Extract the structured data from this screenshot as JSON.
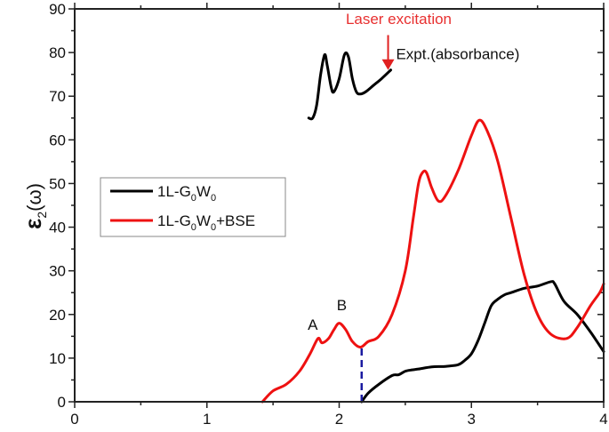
{
  "chart_data": {
    "type": "line",
    "title": "",
    "xlabel": "",
    "ylabel": "ε2(ω)",
    "ylabel_main": "ε",
    "ylabel_sub": "2",
    "ylabel_arg": "(ω)",
    "xlim": [
      0,
      4
    ],
    "ylim": [
      0,
      90
    ],
    "xticks": [
      0,
      1,
      2,
      3,
      4
    ],
    "yticks": [
      0,
      10,
      20,
      30,
      40,
      50,
      60,
      70,
      80,
      90
    ],
    "grid": false,
    "legend_position": "center-left",
    "legend": [
      {
        "main": "1L-G",
        "sub1": "0",
        "mid": "W",
        "sub2": "0",
        "tail": ""
      },
      {
        "main": "1L-G",
        "sub1": "0",
        "mid": "W",
        "sub2": "0",
        "tail": "+BSE"
      }
    ],
    "series": [
      {
        "name": "1L-G0W0",
        "color": "#000000",
        "x": [
          2.17,
          2.22,
          2.3,
          2.4,
          2.45,
          2.5,
          2.55,
          2.6,
          2.7,
          2.8,
          2.9,
          2.95,
          3.0,
          3.05,
          3.1,
          3.15,
          3.2,
          3.25,
          3.3,
          3.4,
          3.5,
          3.6,
          3.63,
          3.7,
          3.8,
          3.9,
          4.0
        ],
        "y": [
          0,
          2,
          4,
          6,
          6.2,
          7,
          7.3,
          7.5,
          8,
          8.1,
          8.5,
          9.5,
          11,
          14,
          18,
          22,
          23.5,
          24.5,
          25,
          26,
          26.5,
          27.5,
          27,
          23,
          20,
          16,
          11.5
        ]
      },
      {
        "name": "1L-G0W0+BSE",
        "color": "#ee1111",
        "x": [
          1.42,
          1.5,
          1.6,
          1.7,
          1.78,
          1.84,
          1.87,
          1.92,
          1.96,
          2.0,
          2.05,
          2.1,
          2.16,
          2.22,
          2.3,
          2.4,
          2.5,
          2.56,
          2.6,
          2.63,
          2.66,
          2.7,
          2.75,
          2.8,
          2.9,
          3.0,
          3.06,
          3.12,
          3.2,
          3.3,
          3.4,
          3.5,
          3.6,
          3.72,
          3.8,
          3.9,
          3.97,
          4.0
        ],
        "y": [
          0,
          2.5,
          4,
          7,
          11,
          14.5,
          13.5,
          14.5,
          16.5,
          18,
          16.5,
          13.8,
          12.5,
          13.8,
          15,
          20,
          30,
          42,
          50,
          52.5,
          52.5,
          49,
          46,
          47,
          53,
          61,
          64.5,
          62,
          55,
          42,
          29,
          20,
          15.5,
          14.5,
          17,
          22,
          25,
          27
        ]
      },
      {
        "name": "Expt.(absorbance)",
        "color": "#000000",
        "x": [
          1.77,
          1.8,
          1.83,
          1.86,
          1.89,
          1.91,
          1.94,
          1.96,
          2.0,
          2.04,
          2.07,
          2.1,
          2.13,
          2.16,
          2.2,
          2.26,
          2.32,
          2.39
        ],
        "y": [
          65,
          65,
          68,
          75,
          79.5,
          77,
          72,
          71,
          74,
          79.5,
          79,
          74,
          71,
          70.5,
          71,
          72.5,
          74,
          76
        ]
      }
    ],
    "markers": [
      {
        "name": "excitation-threshold",
        "x": 2.17,
        "y0": 0,
        "y1": 12.5,
        "color": "#1a1aa0",
        "style": "dashed"
      }
    ],
    "annotations": [
      {
        "text": "A",
        "x": 1.8,
        "y": 16.5
      },
      {
        "text": "B",
        "x": 2.02,
        "y": 21
      },
      {
        "text": "Laser excitation",
        "x": 2.05,
        "y": 86.5,
        "color": "#e83030"
      },
      {
        "text": "Expt.(absorbance)",
        "x": 2.43,
        "y": 78.5
      }
    ],
    "arrow": {
      "x": 2.37,
      "y_from": 84,
      "y_to": 76,
      "color": "#e02020"
    }
  }
}
